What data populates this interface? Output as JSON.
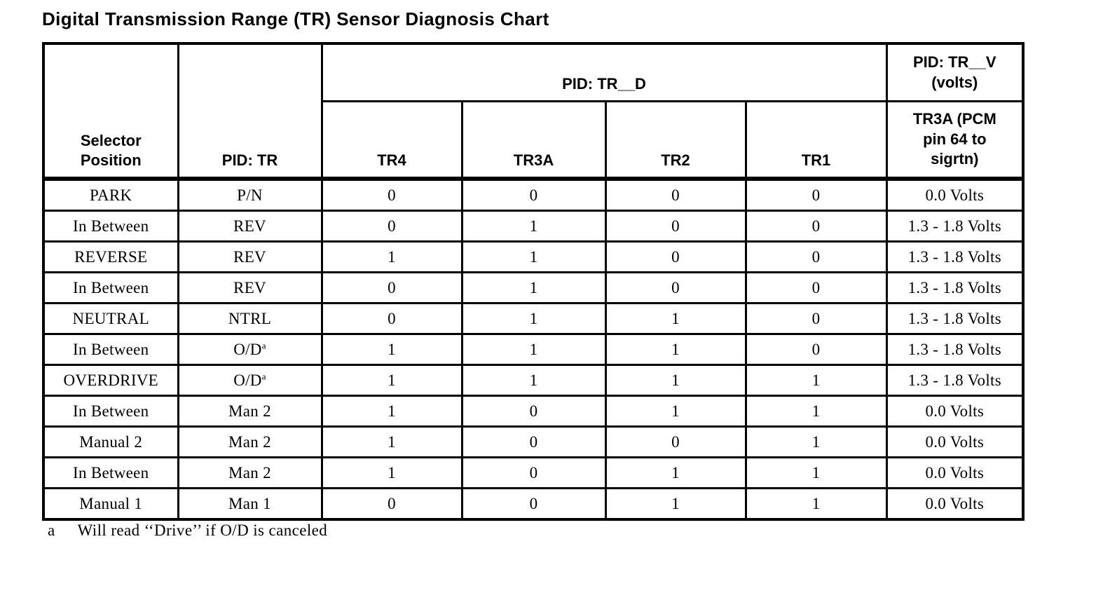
{
  "colors": {
    "text": "#000000",
    "background": "#ffffff",
    "border": "#000000"
  },
  "title": "Digital Transmission Range (TR) Sensor Diagnosis Chart",
  "table": {
    "header": {
      "selector_position": "Selector Position",
      "pid_tr": "PID: TR",
      "pid_tr_d": "PID: TR__D",
      "pid_tr_v": "PID: TR__V (volts)",
      "sub_columns": [
        "TR4",
        "TR3A",
        "TR2",
        "TR1"
      ],
      "tr3a_pcm": "TR3A (PCM pin 64 to sigrtn)"
    },
    "rows": [
      {
        "selector": "PARK",
        "pid": "P/N",
        "tr4": "0",
        "tr3a": "0",
        "tr2": "0",
        "tr1": "0",
        "volts": "0.0 Volts"
      },
      {
        "selector": "In Between",
        "pid": "REV",
        "tr4": "0",
        "tr3a": "1",
        "tr2": "0",
        "tr1": "0",
        "volts": "1.3 - 1.8 Volts"
      },
      {
        "selector": "REVERSE",
        "pid": "REV",
        "tr4": "1",
        "tr3a": "1",
        "tr2": "0",
        "tr1": "0",
        "volts": "1.3 - 1.8 Volts"
      },
      {
        "selector": "In Between",
        "pid": "REV",
        "tr4": "0",
        "tr3a": "1",
        "tr2": "0",
        "tr1": "0",
        "volts": "1.3 - 1.8 Volts"
      },
      {
        "selector": "NEUTRAL",
        "pid": "NTRL",
        "tr4": "0",
        "tr3a": "1",
        "tr2": "1",
        "tr1": "0",
        "volts": "1.3 - 1.8 Volts"
      },
      {
        "selector": "In Between",
        "pid": "O/D",
        "pid_sup": "a",
        "tr4": "1",
        "tr3a": "1",
        "tr2": "1",
        "tr1": "0",
        "volts": "1.3 - 1.8 Volts"
      },
      {
        "selector": "OVERDRIVE",
        "pid": "O/D",
        "pid_sup": "a",
        "tr4": "1",
        "tr3a": "1",
        "tr2": "1",
        "tr1": "1",
        "volts": "1.3 - 1.8 Volts"
      },
      {
        "selector": "In Between",
        "pid": "Man 2",
        "tr4": "1",
        "tr3a": "0",
        "tr2": "1",
        "tr1": "1",
        "volts": "0.0 Volts"
      },
      {
        "selector": "Manual 2",
        "pid": "Man 2",
        "tr4": "1",
        "tr3a": "0",
        "tr2": "0",
        "tr1": "1",
        "volts": "0.0 Volts"
      },
      {
        "selector": "In Between",
        "pid": "Man 2",
        "tr4": "1",
        "tr3a": "0",
        "tr2": "1",
        "tr1": "1",
        "volts": "0.0 Volts"
      },
      {
        "selector": "Manual 1",
        "pid": "Man 1",
        "tr4": "0",
        "tr3a": "0",
        "tr2": "1",
        "tr1": "1",
        "volts": "0.0 Volts"
      }
    ]
  },
  "footnote": {
    "marker": "a",
    "text": "Will read ‘‘Drive’’ if O/D is canceled"
  }
}
